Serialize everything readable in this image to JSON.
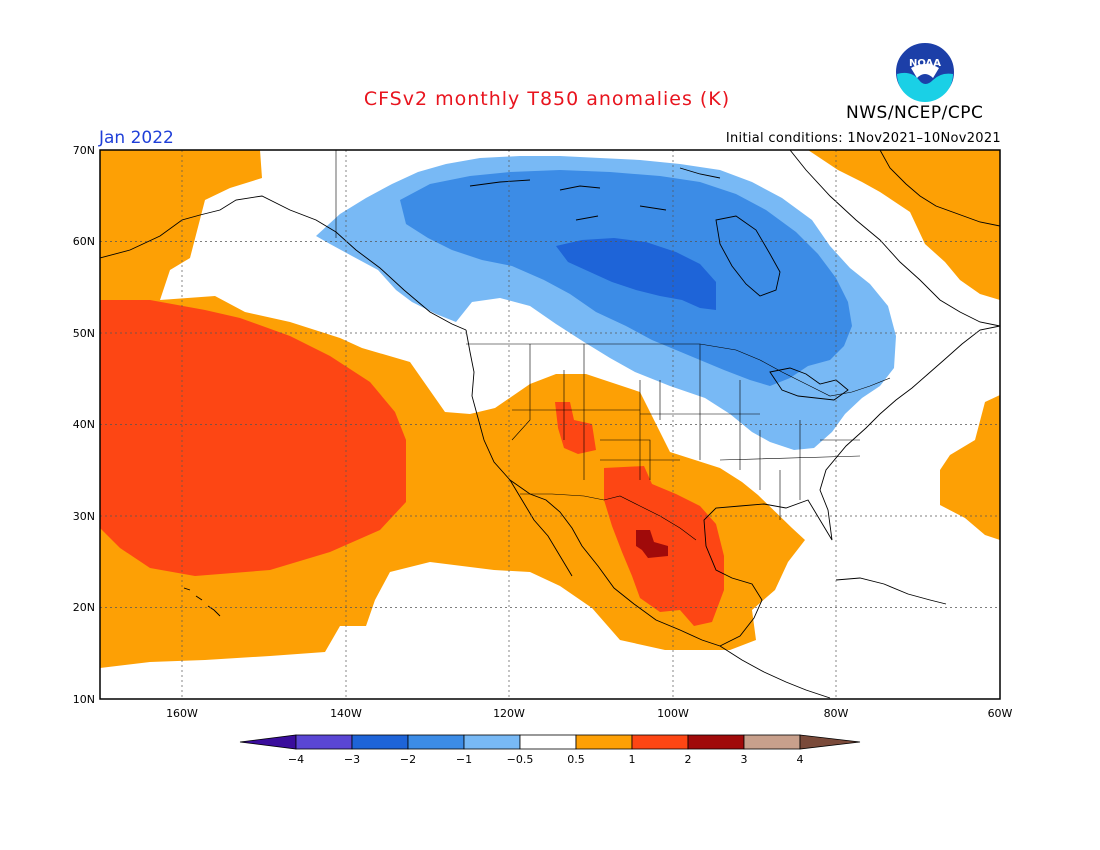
{
  "header": {
    "title": "CFSv2 monthly T850 anomalies (K)",
    "agency": "NWS/NCEP/CPC",
    "logo_text": "NOAA",
    "valid_month": "Jan 2022",
    "initial_conditions": "Initial conditions: 1Nov2021–10Nov2021"
  },
  "map": {
    "lon_range": [
      -172,
      -60
    ],
    "lat_range": [
      10,
      70
    ],
    "lat_labels": [
      "70N",
      "60N",
      "50N",
      "40N",
      "30N",
      "20N",
      "10N"
    ],
    "lon_labels": [
      "160W",
      "140W",
      "120W",
      "100W",
      "80W",
      "60W"
    ],
    "gridlines": "dotted",
    "background_color": "#ffffff"
  },
  "colorbar": {
    "labels": [
      "−4",
      "−3",
      "−2",
      "−1",
      "−0.5",
      "0.5",
      "1",
      "2",
      "3",
      "4"
    ],
    "colors": [
      "#3a0d9c",
      "#5a46d4",
      "#1e64d8",
      "#3c8ce6",
      "#78b9f5",
      "#ffffff",
      "#fda005",
      "#fd4614",
      "#a00a0a",
      "#c8a08c",
      "#7a4a3a"
    ],
    "extend": "both"
  },
  "anomaly_levels": {
    "warm_0_5_to_1": "#fda005",
    "warm_1_to_2": "#fd4614",
    "warm_2_to_3": "#a00a0a",
    "cold_minus0_5_to_minus1": "#78b9f5",
    "cold_minus1_to_minus2": "#3c8ce6",
    "cold_minus2_to_minus3": "#1e64d8"
  }
}
